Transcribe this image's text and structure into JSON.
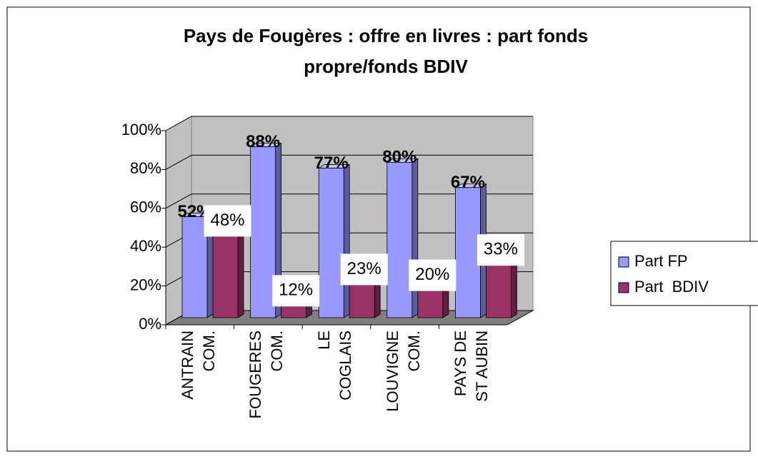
{
  "chart_data": {
    "type": "bar3d",
    "title": "Pays de Fougères : offre en livres : part fonds",
    "subtitle": "propre/fonds BDIV",
    "categories": [
      "ANTRAIN\nCOM.",
      "FOUGERES\nCOM.",
      "LE\nCOGLAIS",
      "LOUVIGNE\nCOM.",
      "PAYS DE\nST AUBIN"
    ],
    "series": [
      {
        "name": "Part FP",
        "color": "#9999ff",
        "values": [
          52,
          88,
          77,
          80,
          67
        ],
        "value_labels": [
          "52%",
          "88%",
          "77%",
          "80%",
          "67%"
        ]
      },
      {
        "name": "Part  BDIV",
        "color": "#993366",
        "values": [
          48,
          12,
          23,
          20,
          33
        ],
        "value_labels": [
          "48%",
          "12%",
          "23%",
          "20%",
          "33%"
        ]
      }
    ],
    "ylim": [
      0,
      100
    ],
    "yticks": [
      {
        "value": 0,
        "label": "0%"
      },
      {
        "value": 20,
        "label": "20%"
      },
      {
        "value": 40,
        "label": "40%"
      },
      {
        "value": 60,
        "label": "60%"
      },
      {
        "value": 80,
        "label": "80%"
      },
      {
        "value": 100,
        "label": "100%"
      }
    ],
    "grid": true,
    "legend": "right"
  }
}
